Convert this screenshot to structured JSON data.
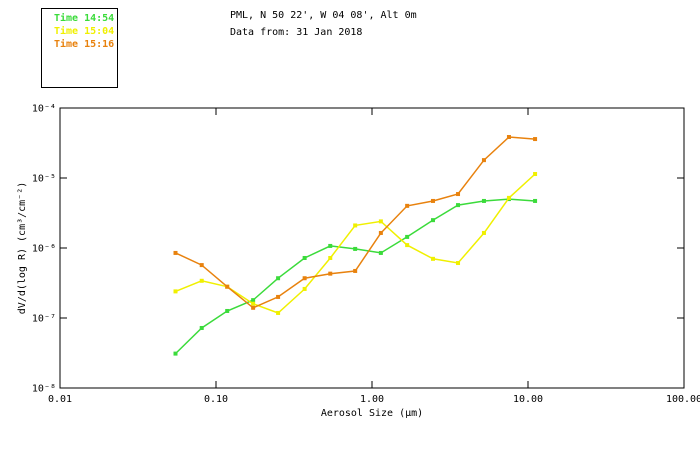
{
  "header": {
    "line1": "PML, N 50 22', W 04 08', Alt 0m",
    "line2": "Data from: 31 Jan 2018"
  },
  "legend": {
    "items": [
      {
        "label": "Time 14:54",
        "color": "#3bdb3b"
      },
      {
        "label": "Time 15:04",
        "color": "#f0f000"
      },
      {
        "label": "Time 15:16",
        "color": "#e8820e"
      }
    ]
  },
  "chart_data": {
    "type": "line",
    "title": "",
    "xlabel": "Aerosol Size (μm)",
    "ylabel": "dV/d(log R) (cm³/cm⁻²)",
    "xscale": "log",
    "yscale": "log",
    "xlim": [
      0.01,
      100
    ],
    "ylim": [
      1e-08,
      0.0001
    ],
    "grid": false,
    "marker": "square",
    "legend_position": "top-left-outside",
    "x_ticks": [
      {
        "value": 0.01,
        "label": "0.01"
      },
      {
        "value": 0.1,
        "label": "0.10"
      },
      {
        "value": 1.0,
        "label": "1.00"
      },
      {
        "value": 10.0,
        "label": "10.00"
      },
      {
        "value": 100.0,
        "label": "100.00"
      }
    ],
    "y_ticks": [
      {
        "value": 0.0001,
        "label": "10⁻⁴"
      },
      {
        "value": 1e-05,
        "label": "10⁻⁵"
      },
      {
        "value": 1e-06,
        "label": "10⁻⁶"
      },
      {
        "value": 1e-07,
        "label": "10⁻⁷"
      },
      {
        "value": 1e-08,
        "label": "10⁻⁸"
      }
    ],
    "x": [
      0.055,
      0.081,
      0.118,
      0.173,
      0.25,
      0.37,
      0.54,
      0.78,
      1.14,
      1.68,
      2.46,
      3.56,
      5.22,
      7.55,
      11.1
    ],
    "series": [
      {
        "name": "Time 14:54",
        "color": "#3bdb3b",
        "values": [
          3.1e-08,
          7.2e-08,
          1.26e-07,
          1.8e-07,
          3.7e-07,
          7.2e-07,
          1.07e-06,
          9.7e-07,
          8.5e-07,
          1.44e-06,
          2.5e-06,
          4.1e-06,
          4.7e-06,
          5e-06,
          4.7e-06
        ]
      },
      {
        "name": "Time 15:04",
        "color": "#f0f000",
        "values": [
          2.4e-07,
          3.4e-07,
          2.8e-07,
          1.6e-07,
          1.18e-07,
          2.6e-07,
          7.2e-07,
          2.1e-06,
          2.4e-06,
          1.1e-06,
          7e-07,
          6.1e-07,
          1.64e-06,
          5.2e-06,
          1.14e-05
        ]
      },
      {
        "name": "Time 15:16",
        "color": "#e8820e",
        "values": [
          8.5e-07,
          5.7e-07,
          2.8e-07,
          1.4e-07,
          2e-07,
          3.7e-07,
          4.3e-07,
          4.7e-07,
          1.64e-06,
          4e-06,
          4.7e-06,
          5.9e-06,
          1.8e-05,
          3.85e-05,
          3.6e-05
        ]
      }
    ]
  }
}
